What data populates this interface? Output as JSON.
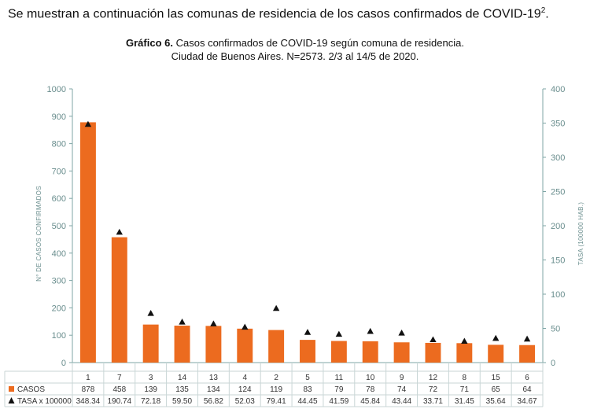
{
  "intro": {
    "text": "Se muestran a continuación las comunas de residencia de los casos confirmados de COVID-19",
    "footnote_mark": "2",
    "trail": "."
  },
  "title": {
    "bold": "Gráfico 6.",
    "line1": "Casos confirmados de COVID-19 según comuna de residencia.",
    "line2": "Ciudad de Buenos Aires. N=2573. 2/3 al 14/5 de 2020."
  },
  "colors": {
    "bar": "#ec6b1f",
    "marker": "#111111",
    "axis": "#7fa6a6",
    "grid": "#e4ecec"
  },
  "chart_data": {
    "type": "bar",
    "categories": [
      "1",
      "7",
      "3",
      "14",
      "13",
      "4",
      "2",
      "5",
      "11",
      "10",
      "9",
      "12",
      "8",
      "15",
      "6"
    ],
    "series": [
      {
        "name": "CASOS",
        "axis": "left",
        "type": "bar",
        "values": [
          878,
          458,
          139,
          135,
          134,
          124,
          119,
          83,
          79,
          78,
          74,
          72,
          71,
          65,
          64
        ],
        "labels": [
          "878",
          "458",
          "139",
          "135",
          "134",
          "124",
          "119",
          "83",
          "79",
          "78",
          "74",
          "72",
          "71",
          "65",
          "64"
        ]
      },
      {
        "name": "TASA x 100000",
        "axis": "right",
        "type": "scatter",
        "marker": "triangle",
        "values": [
          348.34,
          190.74,
          72.18,
          59.5,
          56.82,
          52.03,
          79.41,
          44.45,
          41.59,
          45.84,
          43.44,
          33.71,
          31.45,
          35.64,
          34.67
        ],
        "labels": [
          "348.34",
          "190.74",
          "72.18",
          "59.50",
          "56.82",
          "52.03",
          "79.41",
          "44.45",
          "41.59",
          "45.84",
          "43.44",
          "33.71",
          "31.45",
          "35.64",
          "34.67"
        ]
      }
    ],
    "ylabel": "N° DE CASOS CONFIRMADOS",
    "y2label": "TASA (100000 HAB.)",
    "ylim": [
      0,
      1000
    ],
    "y2lim": [
      0,
      400
    ],
    "yticks": [
      "0",
      "100",
      "200",
      "300",
      "400",
      "500",
      "600",
      "700",
      "800",
      "900",
      "1000"
    ],
    "y2ticks": [
      "0",
      "50",
      "100",
      "150",
      "200",
      "250",
      "300",
      "350",
      "400"
    ],
    "grid": false,
    "legend": "data-table"
  }
}
